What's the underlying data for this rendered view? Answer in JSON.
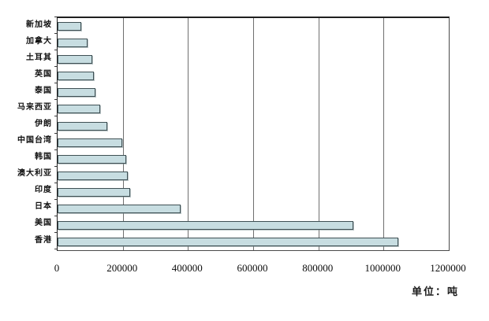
{
  "chart_data": {
    "type": "bar",
    "orientation": "horizontal",
    "title": "",
    "xlabel": "",
    "ylabel": "",
    "unit_label": "单位：吨",
    "categories": [
      "新加坡",
      "加拿大",
      "土耳其",
      "英国",
      "泰国",
      "马来西亚",
      "伊朗",
      "中国台湾",
      "韩国",
      "澳大利亚",
      "印度",
      "日本",
      "美国",
      "香港"
    ],
    "values": [
      73000,
      92000,
      106000,
      110000,
      115000,
      131000,
      153000,
      199000,
      210000,
      214000,
      222000,
      377000,
      908000,
      1045000
    ],
    "xlim": [
      0,
      1200000
    ],
    "x_ticks": [
      0,
      200000,
      400000,
      600000,
      800000,
      1000000,
      1200000
    ],
    "x_tick_labels": [
      "0",
      "200000",
      "400000",
      "600000",
      "800000",
      "1000000",
      "1200000"
    ],
    "grid": "vertical",
    "legend": "none",
    "colors": {
      "bar_fill": "#c7dde1",
      "bar_border": "#3f5054",
      "gridline": "#6f6f6f",
      "axis": "#1f1f1f",
      "background": "#ffffff",
      "text": "#101010"
    }
  }
}
